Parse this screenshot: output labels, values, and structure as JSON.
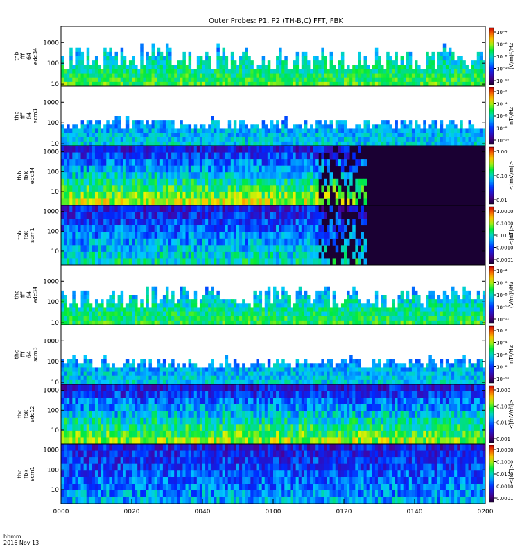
{
  "chart_data": {
    "type": "heatmap",
    "title": "Outer Probes: P1, P2 (TH-B,C) FFT, FBK",
    "x_axis": {
      "tick_labels": [
        "0000",
        "0020",
        "0040",
        "0100",
        "0120",
        "0140",
        "0200"
      ],
      "corner_label_line1": "hhmm",
      "corner_label_line2": "2016 Nov 13"
    },
    "panels": [
      {
        "label_lines": [
          "thb",
          "fff",
          "64",
          "edc34"
        ],
        "type": "fft",
        "y_ticks": [
          "1000",
          "100",
          "10"
        ],
        "y_range_hz": [
          8,
          6000
        ],
        "colorbar": {
          "ticks": [
            "10⁻⁴",
            "10⁻⁶",
            "10⁻⁸",
            "10⁻¹⁰",
            "10⁻¹²"
          ],
          "unit": "(V/m)²/Hz"
        },
        "activity": 0.6
      },
      {
        "label_lines": [
          "thb",
          "fff",
          "64",
          "scm3"
        ],
        "type": "fft",
        "y_ticks": [
          "1000",
          "100",
          "10"
        ],
        "y_range_hz": [
          8,
          6000
        ],
        "colorbar": {
          "ticks": [
            "10⁻²",
            "10⁻⁴",
            "10⁻⁶",
            "10⁻⁸",
            "10⁻¹⁰"
          ],
          "unit": "nT²/Hz"
        },
        "activity": 0.3
      },
      {
        "label_lines": [
          "thb",
          "fbk",
          "edc34"
        ],
        "type": "fbk",
        "y_ticks": [
          "1000",
          "100",
          "10"
        ],
        "y_range_hz": [
          2,
          2000
        ],
        "colorbar": {
          "ticks": [
            "1.00",
            "0.10",
            "0.01"
          ],
          "unit": "<|mV/m|>"
        },
        "activity": 0.75,
        "data_gap_after_hhmm": "0112"
      },
      {
        "label_lines": [
          "thb",
          "fbk",
          "scm1"
        ],
        "type": "fbk",
        "y_ticks": [
          "1000",
          "100",
          "10"
        ],
        "y_range_hz": [
          2,
          2000
        ],
        "colorbar": {
          "ticks": [
            "1.0000",
            "0.1000",
            "0.0100",
            "0.0010",
            "0.0001"
          ],
          "unit": "<|nT|>"
        },
        "activity": 0.45,
        "data_gap_after_hhmm": "0112"
      },
      {
        "label_lines": [
          "thc",
          "fff",
          "64",
          "edc34"
        ],
        "type": "fft",
        "y_ticks": [
          "1000",
          "100",
          "10"
        ],
        "y_range_hz": [
          8,
          6000
        ],
        "colorbar": {
          "ticks": [
            "10⁻⁴",
            "10⁻⁶",
            "10⁻⁸",
            "10⁻¹⁰",
            "10⁻¹²"
          ],
          "unit": "(V/m)²/Hz"
        },
        "activity": 0.55
      },
      {
        "label_lines": [
          "thc",
          "fff",
          "64",
          "scm3"
        ],
        "type": "fft",
        "y_ticks": [
          "1000",
          "100",
          "10"
        ],
        "y_range_hz": [
          8,
          6000
        ],
        "colorbar": {
          "ticks": [
            "10⁻²",
            "10⁻⁴",
            "10⁻⁶",
            "10⁻⁸",
            "10⁻¹⁰"
          ],
          "unit": "nT²/Hz"
        },
        "activity": 0.3
      },
      {
        "label_lines": [
          "thc",
          "fbk",
          "edc12"
        ],
        "type": "fbk",
        "y_ticks": [
          "1000",
          "100",
          "10"
        ],
        "y_range_hz": [
          2,
          2000
        ],
        "colorbar": {
          "ticks": [
            "1.000",
            "0.100",
            "0.010",
            "0.001"
          ],
          "unit": "<|mV/m|>"
        },
        "activity": 0.7
      },
      {
        "label_lines": [
          "thc",
          "fbk",
          "scm1"
        ],
        "type": "fbk",
        "y_ticks": [
          "1000",
          "100",
          "10"
        ],
        "y_range_hz": [
          2,
          2000
        ],
        "colorbar": {
          "ticks": [
            "1.0000",
            "0.1000",
            "0.0100",
            "0.0010",
            "0.0001"
          ],
          "unit": "<|nT|>"
        },
        "activity": 0.3
      }
    ]
  }
}
